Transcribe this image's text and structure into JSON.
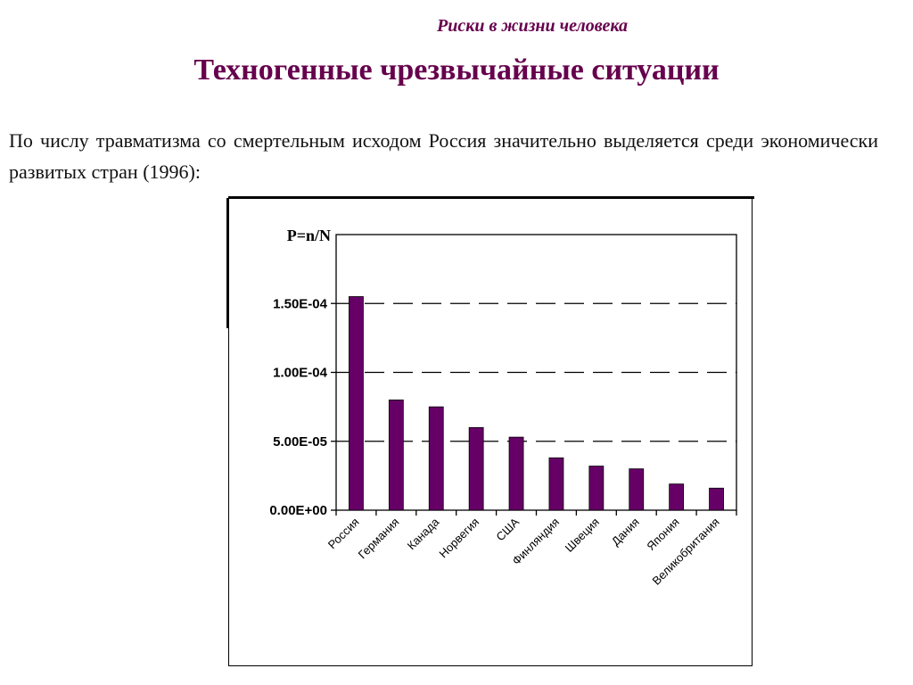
{
  "header": {
    "subtitle": "Риски в жизни человека",
    "title": "Техногенные чрезвычайные ситуации"
  },
  "intro": {
    "text": "По числу травматизма со смертельным исходом Россия значительно выделяется среди экономически развитых стран (1996):"
  },
  "chart_data": {
    "type": "bar",
    "ylabel": "P=n/N",
    "categories": [
      "Россия",
      "Германия",
      "Канада",
      "Норвегия",
      "США",
      "Финляндия",
      "Швеция",
      "Дания",
      "Япония",
      "Великобритания"
    ],
    "values": [
      0.000155,
      8e-05,
      7.5e-05,
      6e-05,
      5.3e-05,
      3.8e-05,
      3.2e-05,
      3e-05,
      1.9e-05,
      1.6e-05
    ],
    "yticks": [
      0,
      5e-05,
      0.0001,
      0.00015
    ],
    "ytick_labels": [
      "0.00E+00",
      "5.00E-05",
      "1.00E-04",
      "1.50E-04"
    ],
    "ylim": [
      0,
      0.0002
    ],
    "grid": "dashed horizontal",
    "bar_color": "#660066",
    "legend": "none"
  }
}
